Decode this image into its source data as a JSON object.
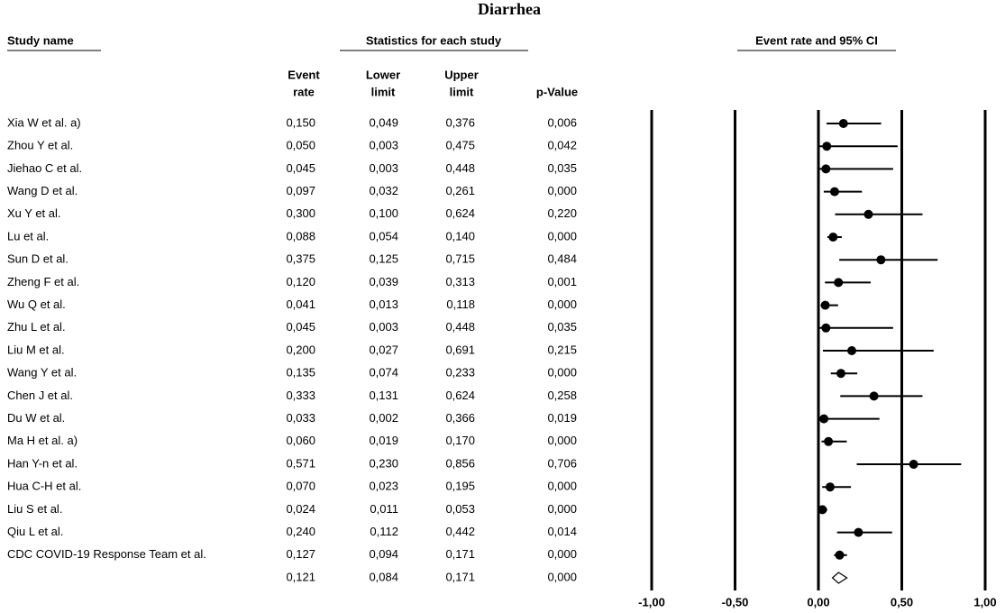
{
  "chart_data": {
    "type": "forest",
    "title": "Diarrhea",
    "study_header": "Study name",
    "stats_header": "Statistics for each study",
    "plot_header": "Event rate and 95% CI",
    "categories": [
      "Xia W et al. a)",
      "Zhou Y et al.",
      "Jiehao C et al.",
      "Wang D et al.",
      "Xu Y et al.",
      "Lu et al.",
      "Sun D et al.",
      "Zheng F et al.",
      "Wu Q et al.",
      "Zhu L et al.",
      "Liu M et al.",
      "Wang Y et al.",
      "Chen J et al.",
      "Du W et al.",
      "Ma H et al. a)",
      "Han Y-n et al.",
      "Hua C-H et al.",
      "Liu S et al.",
      "Qiu L et al.",
      "CDC COVID-19 Response Team et al.",
      null
    ],
    "series": [
      {
        "name_lines": [
          "Event",
          "rate"
        ],
        "values": [
          0.15,
          0.05,
          0.045,
          0.097,
          0.3,
          0.088,
          0.375,
          0.12,
          0.041,
          0.045,
          0.2,
          0.135,
          0.333,
          0.033,
          0.06,
          0.571,
          0.07,
          0.024,
          0.24,
          0.127,
          0.121
        ],
        "value_labels": [
          "0,150",
          "0,050",
          "0,045",
          "0,097",
          "0,300",
          "0,088",
          "0,375",
          "0,120",
          "0,041",
          "0,045",
          "0,200",
          "0,135",
          "0,333",
          "0,033",
          "0,060",
          "0,571",
          "0,070",
          "0,024",
          "0,240",
          "0,127",
          "0,121"
        ]
      },
      {
        "name_lines": [
          "Lower",
          "limit"
        ],
        "values": [
          0.049,
          0.003,
          0.003,
          0.032,
          0.1,
          0.054,
          0.125,
          0.039,
          0.013,
          0.003,
          0.027,
          0.074,
          0.131,
          0.002,
          0.019,
          0.23,
          0.023,
          0.011,
          0.112,
          0.094,
          0.084
        ],
        "value_labels": [
          "0,049",
          "0,003",
          "0,003",
          "0,032",
          "0,100",
          "0,054",
          "0,125",
          "0,039",
          "0,013",
          "0,003",
          "0,027",
          "0,074",
          "0,131",
          "0,002",
          "0,019",
          "0,230",
          "0,023",
          "0,011",
          "0,112",
          "0,094",
          "0,084"
        ]
      },
      {
        "name_lines": [
          "Upper",
          "limit"
        ],
        "values": [
          0.376,
          0.475,
          0.448,
          0.261,
          0.624,
          0.14,
          0.715,
          0.313,
          0.118,
          0.448,
          0.691,
          0.233,
          0.624,
          0.366,
          0.17,
          0.856,
          0.195,
          0.053,
          0.442,
          0.171,
          0.171
        ],
        "value_labels": [
          "0,376",
          "0,475",
          "0,448",
          "0,261",
          "0,624",
          "0,140",
          "0,715",
          "0,313",
          "0,118",
          "0,448",
          "0,691",
          "0,233",
          "0,624",
          "0,366",
          "0,170",
          "0,856",
          "0,195",
          "0,053",
          "0,442",
          "0,171",
          "0,171"
        ]
      },
      {
        "name_lines": [
          "p-Value"
        ],
        "values": [
          0.006,
          0.042,
          0.035,
          0.0,
          0.22,
          0.0,
          0.484,
          0.001,
          0.0,
          0.035,
          0.215,
          0.0,
          0.258,
          0.019,
          0.0,
          0.706,
          0.0,
          0.0,
          0.014,
          0.0,
          0.0
        ],
        "value_labels": [
          "0,006",
          "0,042",
          "0,035",
          "0,000",
          "0,220",
          "0,000",
          "0,484",
          "0,001",
          "0,000",
          "0,035",
          "0,215",
          "0,000",
          "0,258",
          "0,019",
          "0,000",
          "0,706",
          "0,000",
          "0,000",
          "0,014",
          "0,000",
          "0,000"
        ]
      }
    ],
    "xlim": [
      -1,
      1
    ],
    "xticks": [
      {
        "value": -1,
        "label": "-1,00"
      },
      {
        "value": -0.5,
        "label": "-0,50"
      },
      {
        "value": 0,
        "label": "0,00"
      },
      {
        "value": 0.5,
        "label": "0,50"
      },
      {
        "value": 1,
        "label": "1,00"
      }
    ],
    "grid": true,
    "color": "#000000"
  }
}
